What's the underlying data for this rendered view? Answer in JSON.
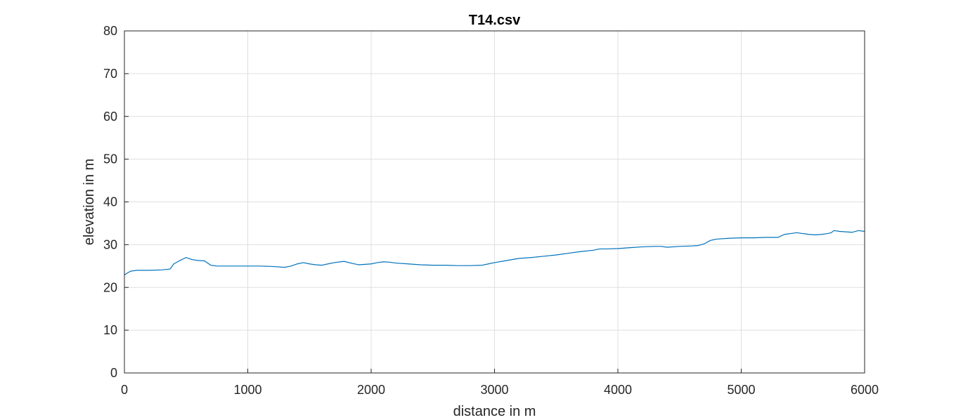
{
  "chart_data": {
    "type": "line",
    "title": "T14.csv",
    "xlabel": "distance in m",
    "ylabel": "elevation in m",
    "xlim": [
      0,
      6000
    ],
    "ylim": [
      0,
      80
    ],
    "xticks": [
      0,
      1000,
      2000,
      3000,
      4000,
      5000,
      6000
    ],
    "yticks": [
      0,
      10,
      20,
      30,
      40,
      50,
      60,
      70,
      80
    ],
    "grid": true,
    "series": [
      {
        "color": "#0072bd",
        "x": [
          0,
          20,
          50,
          100,
          200,
          300,
          370,
          400,
          450,
          500,
          550,
          600,
          650,
          700,
          750,
          800,
          900,
          1000,
          1100,
          1200,
          1300,
          1350,
          1400,
          1450,
          1500,
          1550,
          1600,
          1650,
          1700,
          1780,
          1850,
          1900,
          2000,
          2050,
          2100,
          2150,
          2200,
          2300,
          2400,
          2500,
          2600,
          2700,
          2800,
          2900,
          2950,
          3000,
          3100,
          3200,
          3300,
          3400,
          3500,
          3600,
          3700,
          3800,
          3850,
          3900,
          4000,
          4100,
          4200,
          4300,
          4350,
          4400,
          4500,
          4600,
          4650,
          4700,
          4750,
          4800,
          4900,
          5000,
          5100,
          5200,
          5300,
          5320,
          5350,
          5400,
          5450,
          5500,
          5550,
          5600,
          5650,
          5700,
          5730,
          5750,
          5800,
          5850,
          5900,
          5950,
          6000
        ],
        "y": [
          22.9,
          23.3,
          23.8,
          24.0,
          24.0,
          24.1,
          24.3,
          25.5,
          26.3,
          27.0,
          26.5,
          26.3,
          26.2,
          25.2,
          25.0,
          25.0,
          25.0,
          25.0,
          25.0,
          24.9,
          24.7,
          25.0,
          25.5,
          25.8,
          25.5,
          25.3,
          25.2,
          25.5,
          25.8,
          26.1,
          25.6,
          25.3,
          25.5,
          25.8,
          26.0,
          25.9,
          25.7,
          25.5,
          25.3,
          25.2,
          25.2,
          25.1,
          25.1,
          25.2,
          25.5,
          25.8,
          26.3,
          26.8,
          27.0,
          27.3,
          27.6,
          28.0,
          28.4,
          28.7,
          29.0,
          29.0,
          29.1,
          29.3,
          29.5,
          29.6,
          29.6,
          29.4,
          29.6,
          29.7,
          29.8,
          30.2,
          31.0,
          31.3,
          31.5,
          31.6,
          31.6,
          31.7,
          31.7,
          32.0,
          32.4,
          32.6,
          32.8,
          32.6,
          32.4,
          32.3,
          32.4,
          32.6,
          32.8,
          33.3,
          33.1,
          33.0,
          32.9,
          33.3,
          33.1
        ]
      }
    ]
  }
}
